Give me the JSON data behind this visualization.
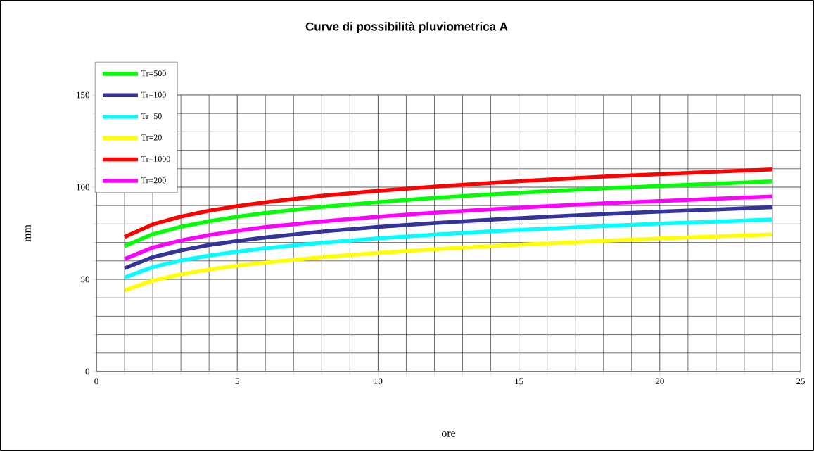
{
  "chart_data": {
    "type": "line",
    "title": "Curve di possibilità pluviometrica A",
    "xlabel": "ore",
    "ylabel": "mm",
    "x": [
      1,
      2,
      3,
      4,
      5,
      6,
      8,
      10,
      12,
      14,
      16,
      18,
      20,
      22,
      24
    ],
    "series": [
      {
        "name": "Tr=500",
        "color": "#00ff00",
        "values": [
          68.0,
          74.5,
          78.5,
          81.5,
          84.0,
          86.0,
          89.3,
          91.9,
          94.2,
          96.1,
          97.8,
          99.3,
          100.7,
          101.9,
          103.1
        ]
      },
      {
        "name": "Tr=100",
        "color": "#333399",
        "values": [
          56.0,
          62.0,
          65.7,
          68.6,
          70.8,
          72.7,
          75.9,
          78.4,
          80.5,
          82.3,
          84.0,
          85.4,
          86.7,
          87.9,
          89.1
        ]
      },
      {
        "name": "Tr=50",
        "color": "#00ffff",
        "values": [
          51.0,
          56.6,
          60.2,
          62.9,
          65.0,
          66.9,
          69.8,
          72.2,
          74.2,
          76.0,
          77.5,
          78.9,
          80.2,
          81.3,
          82.4
        ]
      },
      {
        "name": "Tr=20",
        "color": "#ffff00",
        "values": [
          44.0,
          49.3,
          52.7,
          55.3,
          57.4,
          59.1,
          62.0,
          64.3,
          66.3,
          68.0,
          69.5,
          70.9,
          72.1,
          73.3,
          74.3
        ]
      },
      {
        "name": "Tr=1000",
        "color": "#ff0000",
        "values": [
          73.0,
          79.8,
          84.0,
          87.2,
          89.7,
          91.8,
          95.3,
          98.0,
          100.3,
          102.3,
          104.1,
          105.7,
          107.1,
          108.4,
          109.6
        ]
      },
      {
        "name": "Tr=200",
        "color": "#ff00ff",
        "values": [
          61.0,
          67.2,
          71.1,
          74.0,
          76.3,
          78.3,
          81.4,
          84.0,
          86.2,
          88.0,
          89.7,
          91.2,
          92.5,
          93.7,
          94.9
        ]
      }
    ],
    "xlim": [
      0,
      25
    ],
    "ylim": [
      0,
      150
    ],
    "xticks": [
      0,
      5,
      10,
      15,
      20,
      25
    ],
    "yticks": [
      0,
      50,
      100,
      150
    ],
    "grid": true,
    "legend": "top left"
  }
}
